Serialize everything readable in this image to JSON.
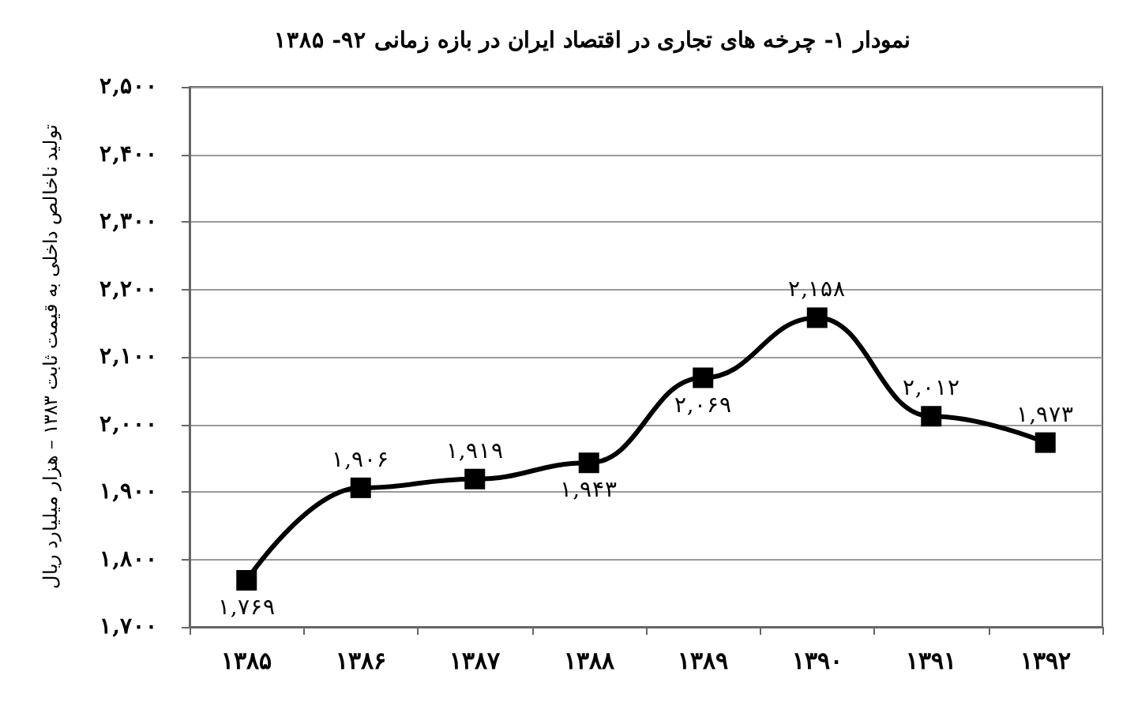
{
  "chart_data": {
    "type": "line",
    "title": "نمودار ۱- چرخه های تجاری در اقتصاد ایران در بازه زمانی ۹۲- ۱۳۸۵",
    "ylabel": "تولید ناخالص داخلی به قیمت ثابت ۱۳۸۳ – هزار میلیارد ریال",
    "categories": [
      "۱۳۸۵",
      "۱۳۸۶",
      "۱۳۸۷",
      "۱۳۸۸",
      "۱۳۸۹",
      "۱۳۹۰",
      "۱۳۹۱",
      "۱۳۹۲"
    ],
    "series": [
      {
        "color": "#000000",
        "values": [
          1769,
          1906,
          1919,
          1943,
          2069,
          2158,
          2012,
          1973
        ],
        "value_labels": [
          "۱,۷۶۹",
          "۱,۹۰۶",
          "۱,۹۱۹",
          "۱,۹۴۳",
          "۲,۰۶۹",
          "۲,۱۵۸",
          "۲,۰۱۲",
          "۱,۹۷۳"
        ]
      }
    ],
    "ylim": [
      1700,
      2500
    ],
    "yticks": [
      {
        "value": 1700,
        "label": "۱,۷۰۰"
      },
      {
        "value": 1800,
        "label": "۱,۸۰۰"
      },
      {
        "value": 1900,
        "label": "۱,۹۰۰"
      },
      {
        "value": 2000,
        "label": "۲,۰۰۰"
      },
      {
        "value": 2100,
        "label": "۲,۱۰۰"
      },
      {
        "value": 2200,
        "label": "۲,۲۰۰"
      },
      {
        "value": 2300,
        "label": "۲,۳۰۰"
      },
      {
        "value": 2400,
        "label": "۲,۴۰۰"
      },
      {
        "value": 2500,
        "label": "۲,۵۰۰"
      }
    ],
    "grid": "y",
    "marker": "square",
    "line_style": "solid"
  }
}
